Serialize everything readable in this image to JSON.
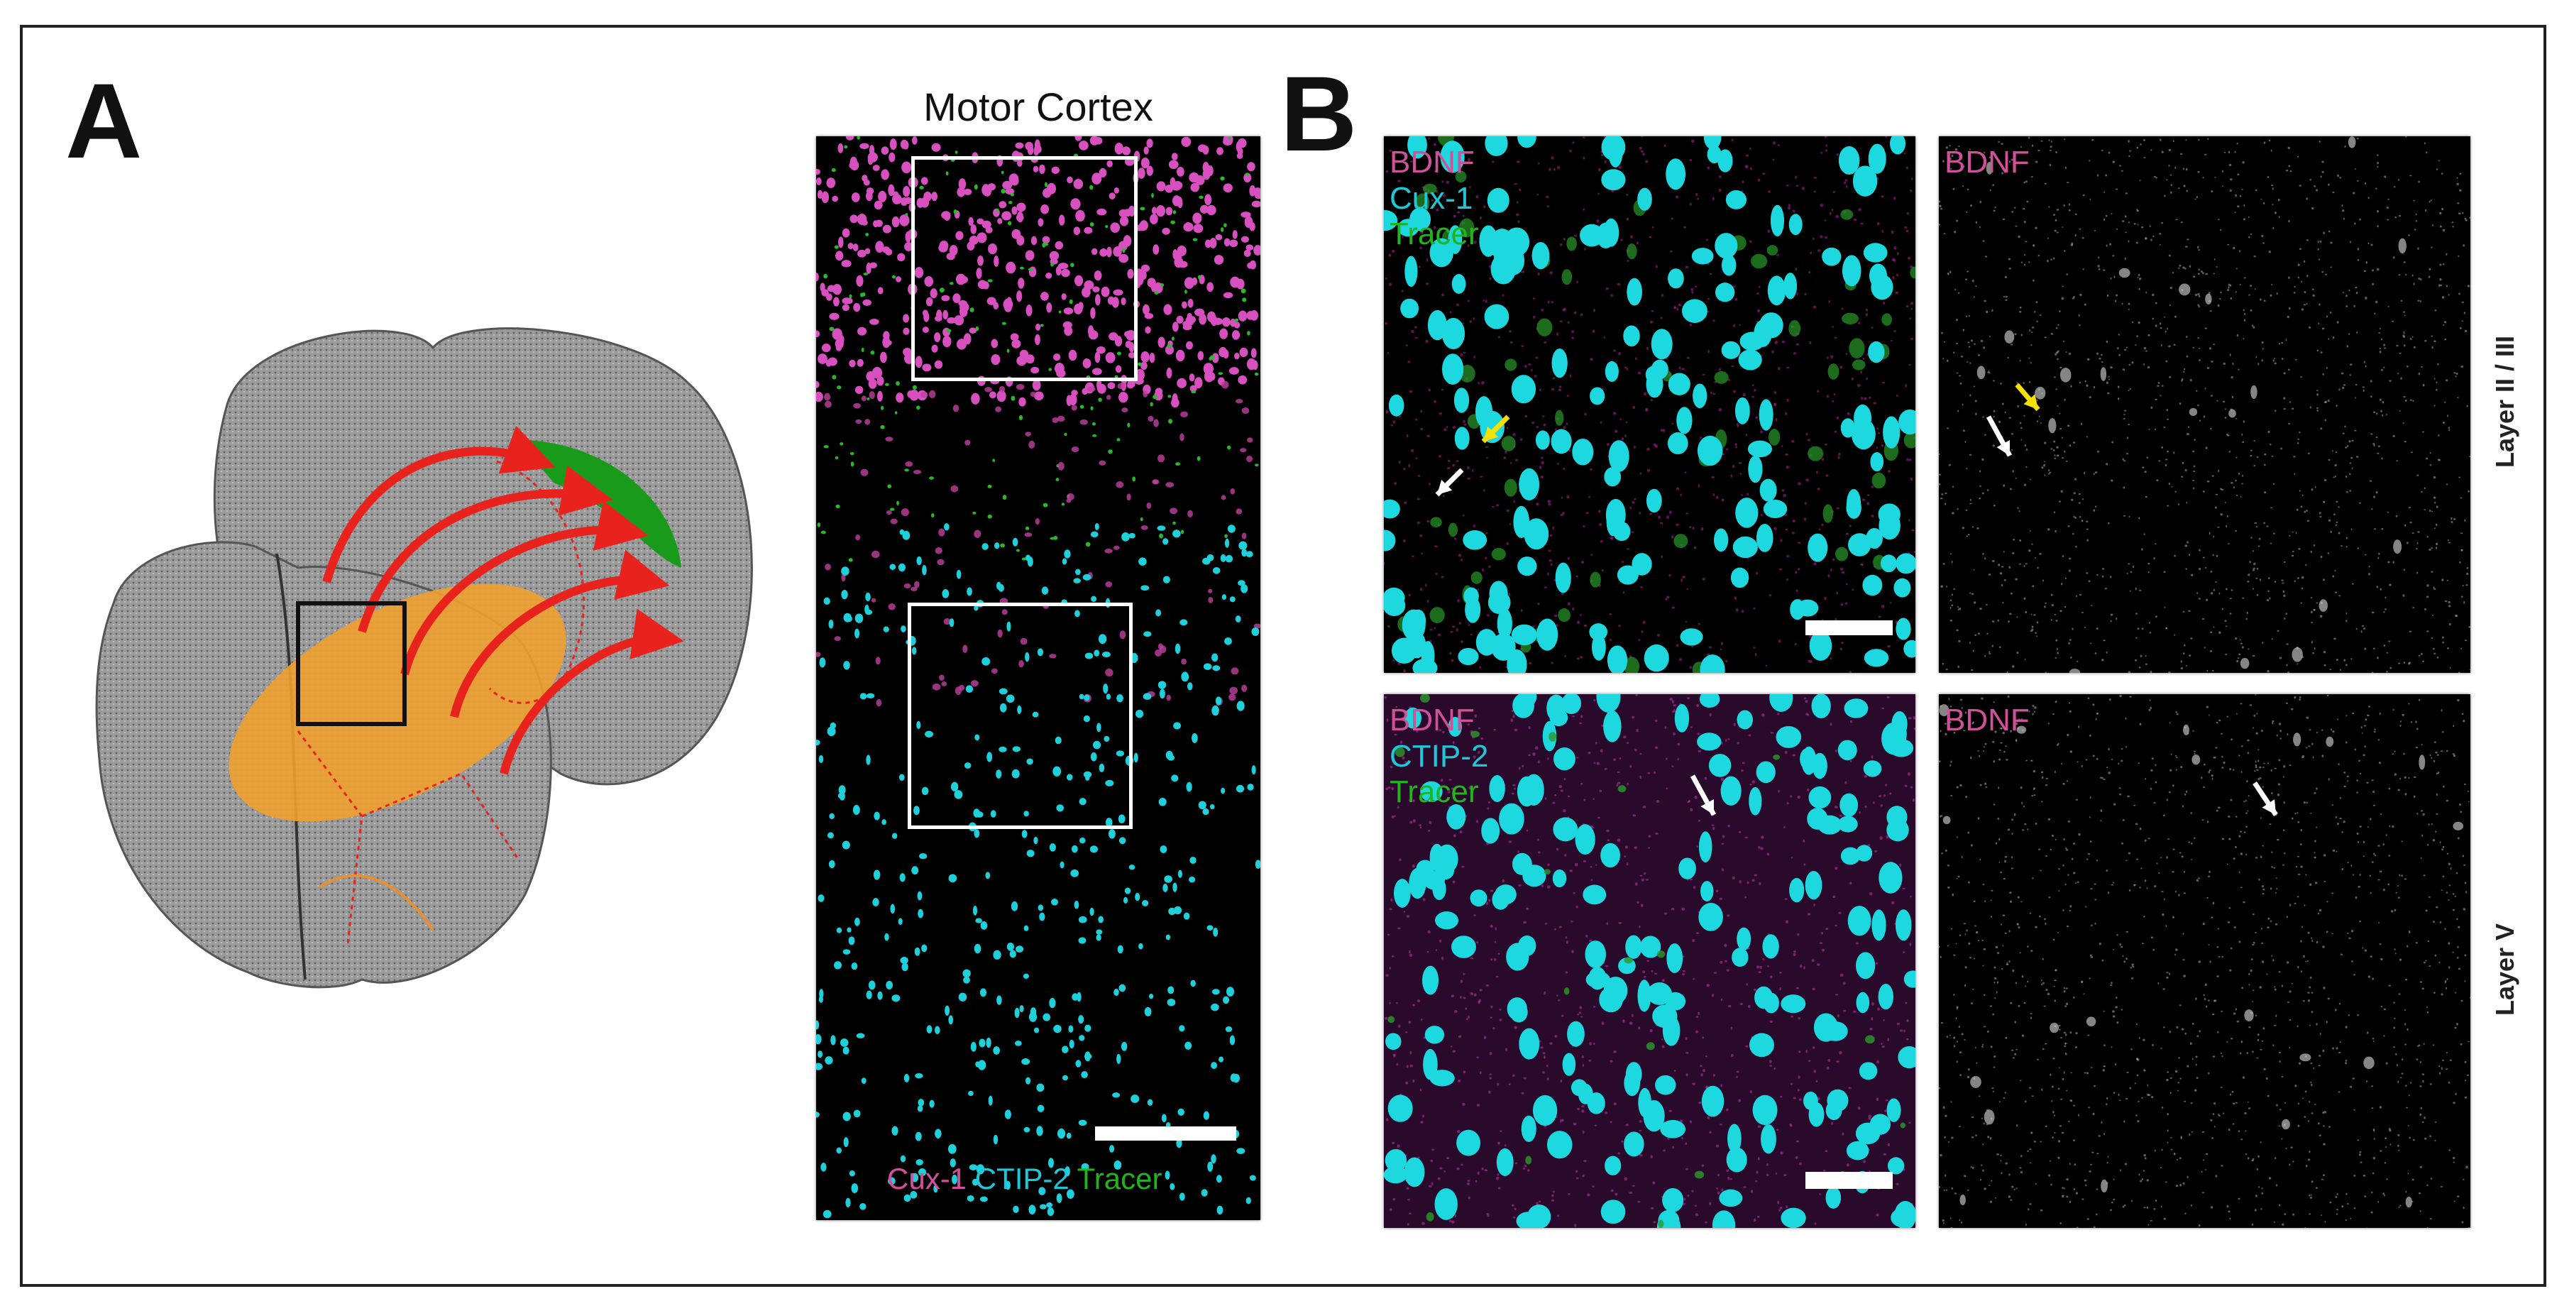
{
  "panel_a": {
    "letter": "A",
    "motor_cortex_title": "Motor Cortex",
    "legend": [
      {
        "text": "Cux-1",
        "color": "#d0509a"
      },
      {
        "text": "CTIP-2",
        "color": "#1ec8d8"
      },
      {
        "text": "Tracer",
        "color": "#22b41e"
      }
    ]
  },
  "panel_b": {
    "letter": "B",
    "top_left_labels": [
      {
        "text": "BDNF",
        "color": "#d0509a"
      },
      {
        "text": "Cux-1",
        "color": "#1ec8d8"
      },
      {
        "text": "Tracer",
        "color": "#22b41e"
      }
    ],
    "top_right_label": {
      "text": "BDNF",
      "color": "#d0509a"
    },
    "bottom_left_labels": [
      {
        "text": "BDNF",
        "color": "#d0509a"
      },
      {
        "text": "CTIP-2",
        "color": "#1ec8d8"
      },
      {
        "text": "Tracer",
        "color": "#22b41e"
      }
    ],
    "bottom_right_label": {
      "text": "BDNF",
      "color": "#d0509a"
    },
    "row_labels": [
      "Layer II / III",
      "Layer V"
    ]
  },
  "colors": {
    "arrow_red": "#e8231e",
    "projection_orange": "#f0a030",
    "target_green": "#1a9a1a",
    "arrow_yellow": "#f5e000",
    "arrow_white": "#ffffff"
  }
}
